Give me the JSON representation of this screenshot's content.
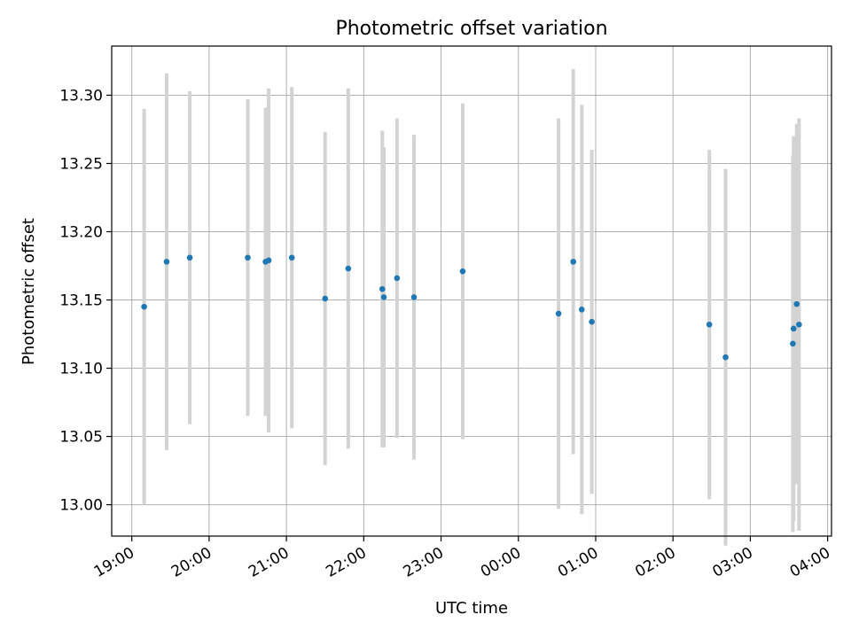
{
  "chart_data": {
    "type": "scatter",
    "title": "Photometric offset variation",
    "xlabel": "UTC time",
    "ylabel": "Photometric offset",
    "x_tick_labels": [
      "19:00",
      "20:00",
      "21:00",
      "22:00",
      "23:00",
      "00:00",
      "01:00",
      "02:00",
      "03:00",
      "04:00"
    ],
    "x_tick_hours": [
      0,
      1,
      2,
      3,
      4,
      5,
      6,
      7,
      8,
      9
    ],
    "x_origin_label": "19:00",
    "xlim_hours": [
      -0.26,
      9.05
    ],
    "y_ticks": [
      13.0,
      13.05,
      13.1,
      13.15,
      13.2,
      13.25,
      13.3
    ],
    "y_tick_labels": [
      "13.00",
      "13.05",
      "13.10",
      "13.15",
      "13.20",
      "13.25",
      "13.30"
    ],
    "ylim": [
      12.977,
      13.336
    ],
    "grid": true,
    "colors": {
      "point": "#1f77b4",
      "errorbar": "#d3d3d3",
      "grid": "#b0b0b0"
    },
    "points": [
      {
        "t": 0.16,
        "y": 13.145,
        "err": 0.145
      },
      {
        "t": 0.45,
        "y": 13.178,
        "err": 0.138
      },
      {
        "t": 0.75,
        "y": 13.181,
        "err": 0.122
      },
      {
        "t": 1.5,
        "y": 13.181,
        "err": 0.116
      },
      {
        "t": 1.73,
        "y": 13.178,
        "err": 0.113
      },
      {
        "t": 1.77,
        "y": 13.179,
        "err": 0.126
      },
      {
        "t": 2.07,
        "y": 13.181,
        "err": 0.125
      },
      {
        "t": 2.5,
        "y": 13.151,
        "err": 0.122
      },
      {
        "t": 2.8,
        "y": 13.173,
        "err": 0.132
      },
      {
        "t": 3.24,
        "y": 13.158,
        "err": 0.116
      },
      {
        "t": 3.26,
        "y": 13.152,
        "err": 0.11
      },
      {
        "t": 3.43,
        "y": 13.166,
        "err": 0.117
      },
      {
        "t": 3.65,
        "y": 13.152,
        "err": 0.119
      },
      {
        "t": 4.28,
        "y": 13.171,
        "err": 0.123
      },
      {
        "t": 5.52,
        "y": 13.14,
        "err": 0.143
      },
      {
        "t": 5.71,
        "y": 13.178,
        "err": 0.141
      },
      {
        "t": 5.82,
        "y": 13.143,
        "err": 0.15
      },
      {
        "t": 5.95,
        "y": 13.134,
        "err": 0.126
      },
      {
        "t": 7.47,
        "y": 13.132,
        "err": 0.128
      },
      {
        "t": 7.68,
        "y": 13.108,
        "err": 0.138
      },
      {
        "t": 8.55,
        "y": 13.118,
        "err": 0.138
      },
      {
        "t": 8.56,
        "y": 13.129,
        "err": 0.141
      },
      {
        "t": 8.6,
        "y": 13.147,
        "err": 0.132
      },
      {
        "t": 8.63,
        "y": 13.132,
        "err": 0.151
      }
    ]
  }
}
